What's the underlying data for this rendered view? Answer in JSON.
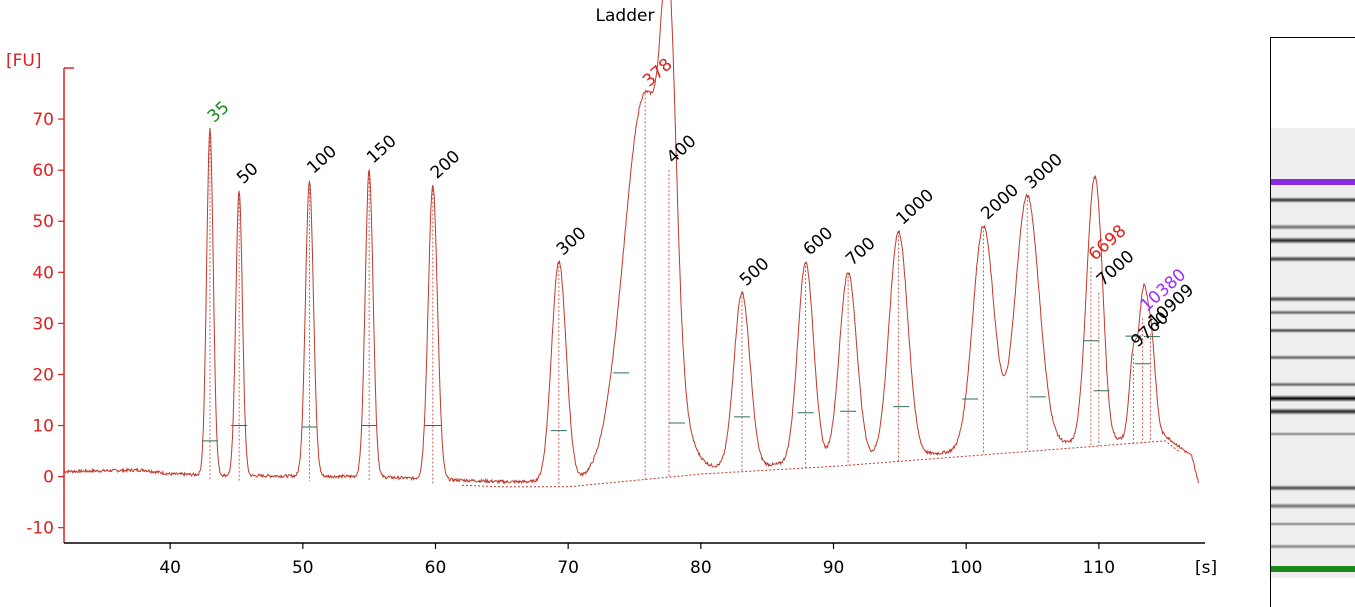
{
  "chart_data": {
    "type": "line",
    "title": "Ladder",
    "ylabel": "[FU]",
    "xlabel": "[s]",
    "xlim": [
      32,
      118
    ],
    "ylim": [
      -13,
      80
    ],
    "xticks": [
      40,
      50,
      60,
      70,
      80,
      90,
      100,
      110
    ],
    "yticks": [
      -10,
      0,
      10,
      20,
      30,
      40,
      50,
      60,
      70
    ],
    "series": [
      {
        "color": "#c0392b",
        "baseline": [
          [
            32,
            1
          ],
          [
            38,
            1.3
          ],
          [
            40,
            0.5
          ],
          [
            45,
            0.2
          ],
          [
            55,
            0
          ],
          [
            65,
            -1
          ],
          [
            70,
            -1
          ],
          [
            80,
            1.5
          ],
          [
            90,
            3
          ],
          [
            100,
            5
          ],
          [
            110,
            7
          ],
          [
            115,
            8
          ],
          [
            117,
            4
          ],
          [
            117.5,
            -1
          ]
        ],
        "peaks": [
          {
            "label": "35",
            "x": 43.0,
            "height": 68,
            "width": 0.25,
            "label_color": "#1a8a1a"
          },
          {
            "label": "50",
            "x": 45.2,
            "height": 56,
            "width": 0.25,
            "label_color": "#000000"
          },
          {
            "label": "100",
            "x": 50.5,
            "height": 58,
            "width": 0.3,
            "label_color": "#000000"
          },
          {
            "label": "150",
            "x": 55.0,
            "height": 60,
            "width": 0.3,
            "label_color": "#000000"
          },
          {
            "label": "200",
            "x": 59.8,
            "height": 57,
            "width": 0.35,
            "label_color": "#000000"
          },
          {
            "label": "300",
            "x": 69.3,
            "height": 42,
            "width": 0.55,
            "label_color": "#000000"
          },
          {
            "label": "378",
            "x": 75.8,
            "height": 75,
            "width": 1.6,
            "label_color": "#e02020"
          },
          {
            "label": "400",
            "x": 77.6,
            "height": 60,
            "width": 0.55,
            "label_color": "#000000"
          },
          {
            "label": "500",
            "x": 83.1,
            "height": 36,
            "width": 0.6,
            "label_color": "#000000"
          },
          {
            "label": "600",
            "x": 87.9,
            "height": 42,
            "width": 0.6,
            "label_color": "#000000"
          },
          {
            "label": "700",
            "x": 91.1,
            "height": 40,
            "width": 0.65,
            "label_color": "#000000"
          },
          {
            "label": "1000",
            "x": 94.9,
            "height": 48,
            "width": 0.7,
            "label_color": "#000000"
          },
          {
            "label": "2000",
            "x": 101.3,
            "height": 49,
            "width": 0.8,
            "label_color": "#000000"
          },
          {
            "label": "3000",
            "x": 104.6,
            "height": 55,
            "width": 0.9,
            "label_color": "#000000"
          },
          {
            "label": "6698",
            "x": 109.4,
            "height": 41,
            "width": 0.5,
            "label_color": "#e02020"
          },
          {
            "label": "7000",
            "x": 110.0,
            "height": 36,
            "width": 0.45,
            "label_color": "#000000"
          },
          {
            "label": "9760",
            "x": 112.6,
            "height": 24,
            "width": 0.3,
            "label_color": "#000000"
          },
          {
            "label": "10380",
            "x": 113.3,
            "height": 31,
            "width": 0.3,
            "label_color": "#9b30ff"
          },
          {
            "label": "10909",
            "x": 113.9,
            "height": 28,
            "width": 0.35,
            "label_color": "#000000"
          }
        ]
      }
    ],
    "peak_markers": [
      {
        "x": 43.0,
        "y": 7
      },
      {
        "x": 45.2,
        "y": 10
      },
      {
        "x": 50.5,
        "y": 9.7
      },
      {
        "x": 55.0,
        "y": 10
      },
      {
        "x": 59.8,
        "y": 10
      },
      {
        "x": 69.3,
        "y": 9
      },
      {
        "x": 74.0,
        "y": 20.3
      },
      {
        "x": 78.2,
        "y": 10.5
      },
      {
        "x": 83.1,
        "y": 11.7
      },
      {
        "x": 87.9,
        "y": 12.5
      },
      {
        "x": 91.1,
        "y": 12.8
      },
      {
        "x": 95.1,
        "y": 13.7
      },
      {
        "x": 100.3,
        "y": 15.2
      },
      {
        "x": 105.4,
        "y": 15.6
      },
      {
        "x": 109.4,
        "y": 26.6
      },
      {
        "x": 110.2,
        "y": 16.8
      },
      {
        "x": 112.6,
        "y": 27.5
      },
      {
        "x": 113.3,
        "y": 22.1
      },
      {
        "x": 114.0,
        "y": 27.4
      }
    ],
    "grid": false,
    "legend": "none"
  },
  "colors": {
    "axis": "#e02020",
    "trace": "#c0392b",
    "marker": "#2f6b5e",
    "gel_upper": "#8a2be2",
    "gel_lower": "#1a8a1a"
  },
  "gel": {
    "bands": [
      {
        "y": 0.12,
        "color": "#8a2be2",
        "strength": 1.0
      },
      {
        "y": 0.16,
        "color": "#000000",
        "strength": 0.8
      },
      {
        "y": 0.22,
        "color": "#000000",
        "strength": 0.55
      },
      {
        "y": 0.25,
        "color": "#000000",
        "strength": 0.85
      },
      {
        "y": 0.29,
        "color": "#000000",
        "strength": 0.75
      },
      {
        "y": 0.38,
        "color": "#000000",
        "strength": 0.7
      },
      {
        "y": 0.41,
        "color": "#000000",
        "strength": 0.6
      },
      {
        "y": 0.45,
        "color": "#000000",
        "strength": 0.7
      },
      {
        "y": 0.51,
        "color": "#000000",
        "strength": 0.6
      },
      {
        "y": 0.57,
        "color": "#000000",
        "strength": 0.6
      },
      {
        "y": 0.6,
        "color": "#000000",
        "strength": 1.0
      },
      {
        "y": 0.63,
        "color": "#000000",
        "strength": 0.85
      },
      {
        "y": 0.68,
        "color": "#000000",
        "strength": 0.45
      },
      {
        "y": 0.8,
        "color": "#000000",
        "strength": 0.7
      },
      {
        "y": 0.84,
        "color": "#000000",
        "strength": 0.55
      },
      {
        "y": 0.88,
        "color": "#000000",
        "strength": 0.45
      },
      {
        "y": 0.93,
        "color": "#000000",
        "strength": 0.45
      },
      {
        "y": 0.98,
        "color": "#1a8a1a",
        "strength": 1.0
      }
    ]
  }
}
